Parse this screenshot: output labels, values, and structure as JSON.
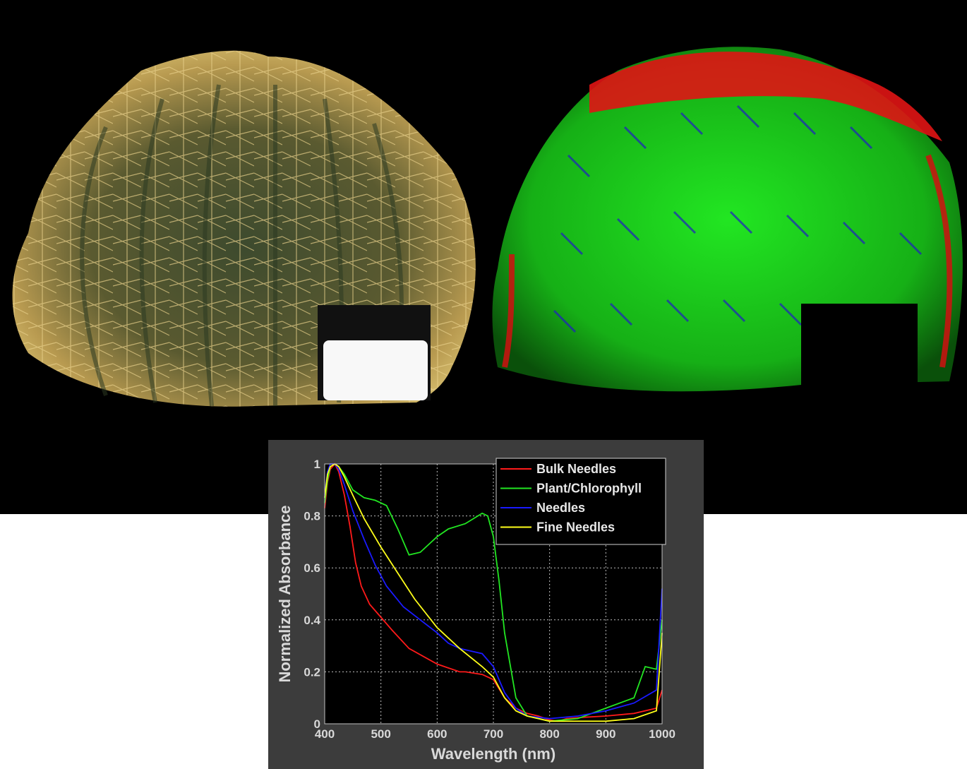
{
  "images": {
    "left": "cactus-rgb-photo",
    "right": "cactus-false-color-classification"
  },
  "colors": {
    "Bulk Needles": "#ff1a1a",
    "Plant/Chlorophyll": "#22e622",
    "Needles": "#1a1aff",
    "Fine Needles": "#ffff1a"
  },
  "chart_data": {
    "type": "line",
    "title": "",
    "xlabel": "Wavelength (nm)",
    "ylabel": "Normalized Absorbance",
    "xlim": [
      400,
      1000
    ],
    "ylim": [
      0,
      1
    ],
    "xticks": [
      400,
      500,
      600,
      700,
      800,
      900,
      1000
    ],
    "yticks": [
      0,
      0.2,
      0.4,
      0.6,
      0.8,
      1
    ],
    "ytick_labels": [
      "0",
      "0.2",
      "0.4",
      "0.6",
      "0.8",
      "1"
    ],
    "grid": true,
    "legend": "top-right",
    "series": [
      {
        "name": "Bulk Needles",
        "x": [
          400,
          405,
          410,
          418,
          425,
          435,
          445,
          455,
          465,
          480,
          500,
          520,
          550,
          600,
          640,
          650,
          680,
          700,
          720,
          740,
          760,
          780,
          800,
          815,
          830,
          860,
          900,
          950,
          990,
          1000
        ],
        "y": [
          0.83,
          0.93,
          0.98,
          1.0,
          0.97,
          0.88,
          0.76,
          0.62,
          0.53,
          0.46,
          0.41,
          0.36,
          0.29,
          0.23,
          0.2,
          0.2,
          0.19,
          0.17,
          0.1,
          0.06,
          0.04,
          0.03,
          0.015,
          0.01,
          0.02,
          0.025,
          0.03,
          0.04,
          0.06,
          0.13
        ]
      },
      {
        "name": "Plant/Chlorophyll",
        "x": [
          400,
          405,
          410,
          418,
          425,
          435,
          450,
          470,
          490,
          510,
          530,
          550,
          570,
          600,
          620,
          650,
          680,
          690,
          700,
          710,
          720,
          740,
          760,
          800,
          850,
          900,
          950,
          970,
          990,
          1000
        ],
        "y": [
          0.85,
          0.94,
          0.99,
          1.0,
          0.99,
          0.96,
          0.9,
          0.87,
          0.86,
          0.84,
          0.75,
          0.65,
          0.66,
          0.72,
          0.75,
          0.77,
          0.81,
          0.8,
          0.72,
          0.55,
          0.35,
          0.1,
          0.03,
          0.01,
          0.02,
          0.06,
          0.1,
          0.22,
          0.21,
          0.4
        ]
      },
      {
        "name": "Needles",
        "x": [
          400,
          405,
          410,
          418,
          425,
          435,
          450,
          470,
          490,
          510,
          540,
          570,
          600,
          620,
          640,
          660,
          680,
          700,
          720,
          740,
          760,
          800,
          850,
          900,
          950,
          990,
          1000
        ],
        "y": [
          0.88,
          0.97,
          1.0,
          1.0,
          0.98,
          0.92,
          0.82,
          0.71,
          0.61,
          0.53,
          0.45,
          0.4,
          0.35,
          0.31,
          0.29,
          0.28,
          0.27,
          0.22,
          0.12,
          0.06,
          0.03,
          0.02,
          0.03,
          0.05,
          0.08,
          0.13,
          0.52
        ]
      },
      {
        "name": "Fine Needles",
        "x": [
          400,
          405,
          410,
          418,
          425,
          435,
          450,
          470,
          500,
          530,
          560,
          600,
          640,
          680,
          700,
          720,
          740,
          760,
          800,
          850,
          900,
          950,
          990,
          1000
        ],
        "y": [
          0.87,
          0.96,
          0.99,
          1.0,
          0.99,
          0.95,
          0.88,
          0.79,
          0.68,
          0.58,
          0.48,
          0.37,
          0.29,
          0.22,
          0.18,
          0.1,
          0.05,
          0.03,
          0.01,
          0.01,
          0.01,
          0.02,
          0.05,
          0.35
        ]
      }
    ]
  }
}
